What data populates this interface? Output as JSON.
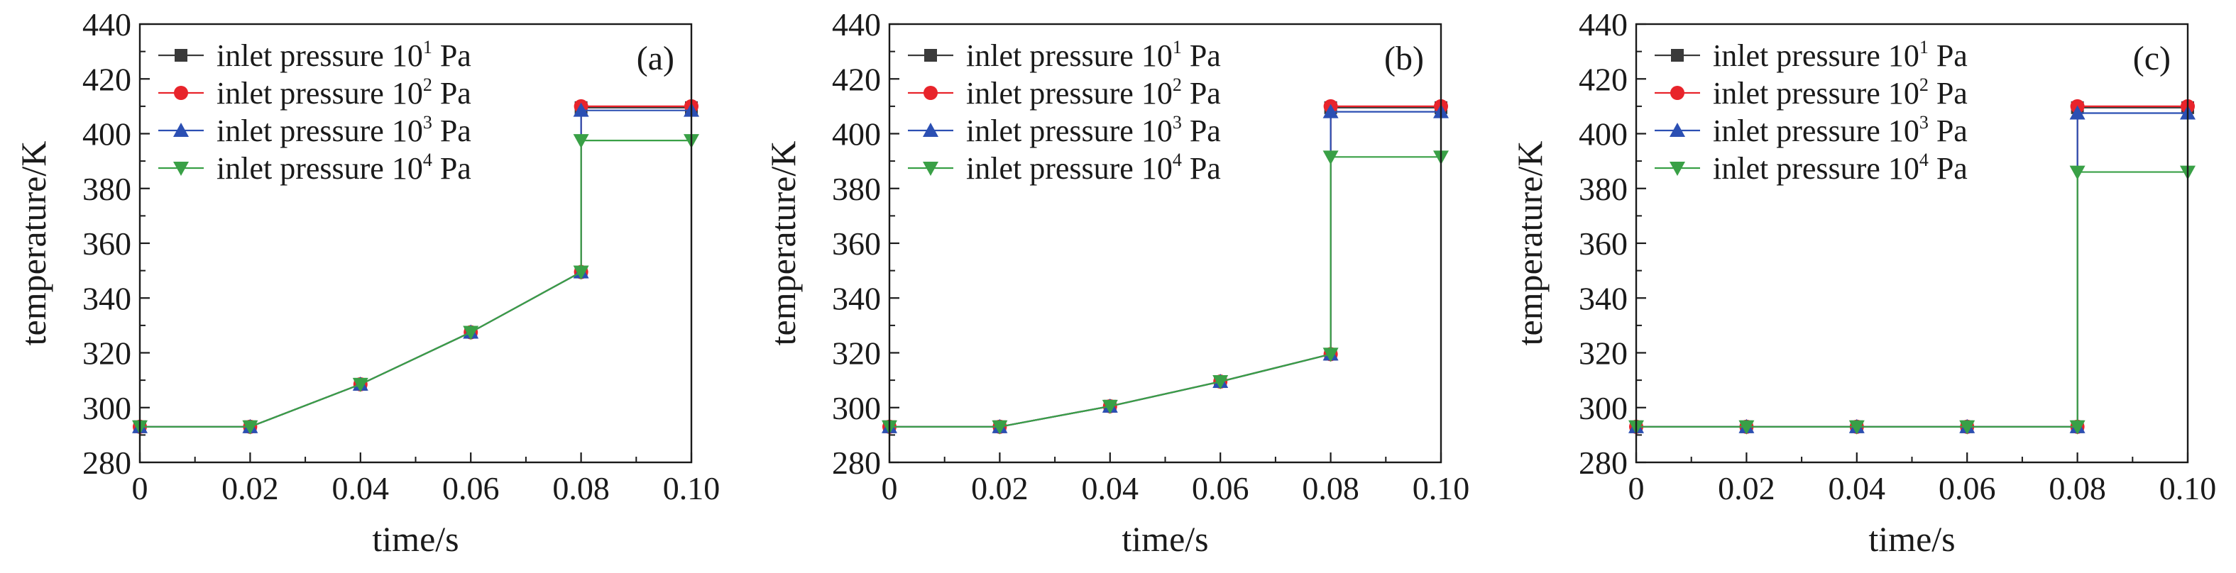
{
  "colors": {
    "inlet_1e1": "#3a3a3a",
    "inlet_1e2": "#e8242b",
    "inlet_1e3": "#2b4fb3",
    "inlet_1e4": "#39a046",
    "axis": "#1a1a1a"
  },
  "chart_data": [
    {
      "type": "line",
      "panel": "(a)",
      "xlabel": "time/s",
      "ylabel": "temperature/K",
      "xlim": [
        0,
        0.1
      ],
      "ylim": [
        280,
        440
      ],
      "xticks": [
        "0",
        "0.02",
        "0.04",
        "0.06",
        "0.08",
        "0.10"
      ],
      "yticks": [
        "280",
        "300",
        "320",
        "340",
        "360",
        "380",
        "400",
        "420",
        "440"
      ],
      "legend_placement": "top-left",
      "series": [
        {
          "name": "inlet pressure 10¹ Pa",
          "legend": {
            "base": "inlet pressure 10",
            "sup": "1",
            "unit": " Pa"
          },
          "marker": "square",
          "color": "#3a3a3a",
          "x": [
            0,
            0.02,
            0.04,
            0.06,
            0.08,
            0.08,
            0.1
          ],
          "y": [
            293,
            293,
            308.5,
            327.5,
            349.5,
            409.5,
            409.5
          ]
        },
        {
          "name": "inlet pressure 10² Pa",
          "legend": {
            "base": "inlet pressure 10",
            "sup": "2",
            "unit": " Pa"
          },
          "marker": "circle",
          "color": "#e8242b",
          "x": [
            0,
            0.02,
            0.04,
            0.06,
            0.08,
            0.08,
            0.1
          ],
          "y": [
            293,
            293,
            308.5,
            327.5,
            349.5,
            410,
            410
          ]
        },
        {
          "name": "inlet pressure 10³ Pa",
          "legend": {
            "base": "inlet pressure 10",
            "sup": "3",
            "unit": " Pa"
          },
          "marker": "triangle-up",
          "color": "#2b4fb3",
          "x": [
            0,
            0.02,
            0.04,
            0.06,
            0.08,
            0.08,
            0.1
          ],
          "y": [
            293,
            293,
            308.5,
            327.5,
            349.5,
            408.5,
            408.5
          ]
        },
        {
          "name": "inlet pressure 10⁴ Pa",
          "legend": {
            "base": "inlet pressure 10",
            "sup": "4",
            "unit": " Pa"
          },
          "marker": "triangle-down",
          "color": "#39a046",
          "x": [
            0,
            0.02,
            0.04,
            0.06,
            0.08,
            0.08,
            0.1
          ],
          "y": [
            293,
            293,
            308.5,
            327.5,
            349.5,
            397.5,
            397.5
          ]
        }
      ]
    },
    {
      "type": "line",
      "panel": "(b)",
      "xlabel": "time/s",
      "ylabel": "temperature/K",
      "xlim": [
        0,
        0.1
      ],
      "ylim": [
        280,
        440
      ],
      "xticks": [
        "0",
        "0.02",
        "0.04",
        "0.06",
        "0.08",
        "0.10"
      ],
      "yticks": [
        "280",
        "300",
        "320",
        "340",
        "360",
        "380",
        "400",
        "420",
        "440"
      ],
      "legend_placement": "top-left",
      "series": [
        {
          "name": "inlet pressure 10¹ Pa",
          "legend": {
            "base": "inlet pressure 10",
            "sup": "1",
            "unit": " Pa"
          },
          "marker": "square",
          "color": "#3a3a3a",
          "x": [
            0,
            0.02,
            0.04,
            0.06,
            0.08,
            0.08,
            0.1
          ],
          "y": [
            293,
            293,
            300.5,
            309.5,
            319.5,
            409.5,
            409.5
          ]
        },
        {
          "name": "inlet pressure 10² Pa",
          "legend": {
            "base": "inlet pressure 10",
            "sup": "2",
            "unit": " Pa"
          },
          "marker": "circle",
          "color": "#e8242b",
          "x": [
            0,
            0.02,
            0.04,
            0.06,
            0.08,
            0.08,
            0.1
          ],
          "y": [
            293,
            293,
            300.5,
            309.5,
            319.5,
            410,
            410
          ]
        },
        {
          "name": "inlet pressure 10³ Pa",
          "legend": {
            "base": "inlet pressure 10",
            "sup": "3",
            "unit": " Pa"
          },
          "marker": "triangle-up",
          "color": "#2b4fb3",
          "x": [
            0,
            0.02,
            0.04,
            0.06,
            0.08,
            0.08,
            0.1
          ],
          "y": [
            293,
            293,
            300.5,
            309.5,
            319.5,
            408,
            408
          ]
        },
        {
          "name": "inlet pressure 10⁴ Pa",
          "legend": {
            "base": "inlet pressure 10",
            "sup": "4",
            "unit": " Pa"
          },
          "marker": "triangle-down",
          "color": "#39a046",
          "x": [
            0,
            0.02,
            0.04,
            0.06,
            0.08,
            0.08,
            0.1
          ],
          "y": [
            293,
            293,
            300.5,
            309.5,
            319.5,
            391.5,
            391.5
          ]
        }
      ]
    },
    {
      "type": "line",
      "panel": "(c)",
      "xlabel": "time/s",
      "ylabel": "temperature/K",
      "xlim": [
        0,
        0.1
      ],
      "ylim": [
        280,
        440
      ],
      "xticks": [
        "0",
        "0.02",
        "0.04",
        "0.06",
        "0.08",
        "0.10"
      ],
      "yticks": [
        "280",
        "300",
        "320",
        "340",
        "360",
        "380",
        "400",
        "420",
        "440"
      ],
      "legend_placement": "top-left",
      "series": [
        {
          "name": "inlet pressure 10¹ Pa",
          "legend": {
            "base": "inlet pressure 10",
            "sup": "1",
            "unit": " Pa"
          },
          "marker": "square",
          "color": "#3a3a3a",
          "x": [
            0,
            0.02,
            0.04,
            0.06,
            0.08,
            0.08,
            0.1
          ],
          "y": [
            293,
            293,
            293,
            293,
            293,
            409.5,
            409.5
          ]
        },
        {
          "name": "inlet pressure 10² Pa",
          "legend": {
            "base": "inlet pressure 10",
            "sup": "2",
            "unit": " Pa"
          },
          "marker": "circle",
          "color": "#e8242b",
          "x": [
            0,
            0.02,
            0.04,
            0.06,
            0.08,
            0.08,
            0.1
          ],
          "y": [
            293,
            293,
            293,
            293,
            293,
            410,
            410
          ]
        },
        {
          "name": "inlet pressure 10³ Pa",
          "legend": {
            "base": "inlet pressure 10",
            "sup": "3",
            "unit": " Pa"
          },
          "marker": "triangle-up",
          "color": "#2b4fb3",
          "x": [
            0,
            0.02,
            0.04,
            0.06,
            0.08,
            0.08,
            0.1
          ],
          "y": [
            293,
            293,
            293,
            293,
            293,
            407.5,
            407.5
          ]
        },
        {
          "name": "inlet pressure 10⁴ Pa",
          "legend": {
            "base": "inlet pressure 10",
            "sup": "4",
            "unit": " Pa"
          },
          "marker": "triangle-down",
          "color": "#39a046",
          "x": [
            0,
            0.02,
            0.04,
            0.06,
            0.08,
            0.08,
            0.1
          ],
          "y": [
            293,
            293,
            293,
            293,
            293,
            386,
            386
          ]
        }
      ]
    }
  ]
}
